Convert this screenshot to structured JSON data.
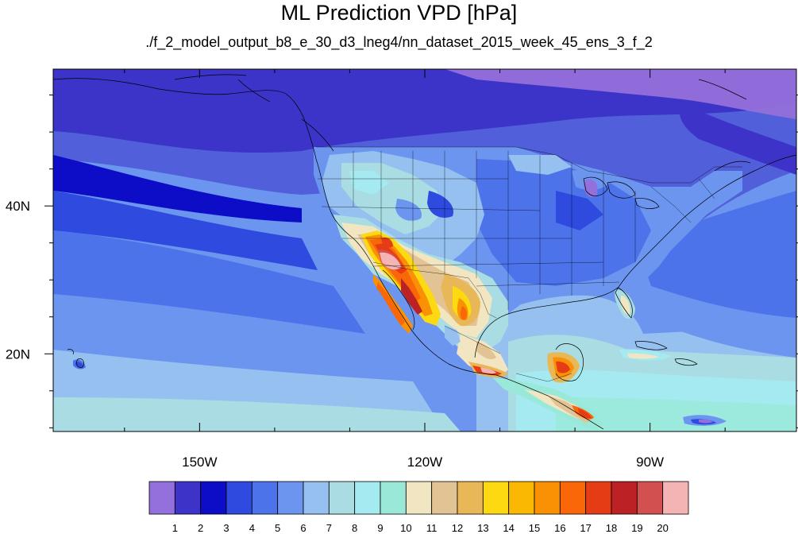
{
  "title": "ML Prediction VPD [hPa]",
  "subtitle": "./f_2_model_output_b8_e_30_d3_lneg4/nn_dataset_2015_week_45_ens_3_f_2",
  "map": {
    "lon_range": [
      -169.5,
      -70.5
    ],
    "lat_range": [
      9.5,
      58.5
    ],
    "x_ticks": [
      {
        "lon": -150,
        "label": "150W"
      },
      {
        "lon": -120,
        "label": "120W"
      },
      {
        "lon": -90,
        "label": "90W"
      }
    ],
    "y_ticks": [
      {
        "lat": 40,
        "label": "40N"
      },
      {
        "lat": 20,
        "label": "20N"
      }
    ],
    "minor_lon_step": 10,
    "minor_lat_step": 5
  },
  "colorbar": {
    "labels": [
      "1",
      "2",
      "3",
      "4",
      "5",
      "6",
      "7",
      "8",
      "9",
      "10",
      "11",
      "12",
      "13",
      "14",
      "15",
      "16",
      "17",
      "18",
      "19",
      "20"
    ],
    "colors": [
      "#9370db",
      "#3d33c8",
      "#0d0dc8",
      "#2e4adf",
      "#4d73eb",
      "#6b95ef",
      "#95c0ef",
      "#aadde3",
      "#a4eaf0",
      "#9ae8d8",
      "#f2e6c2",
      "#e2c394",
      "#e8b858",
      "#fcd911",
      "#fab802",
      "#fa9104",
      "#fa6708",
      "#e63c16",
      "#bc2126",
      "#d25050",
      "#f5b4b4"
    ]
  }
}
